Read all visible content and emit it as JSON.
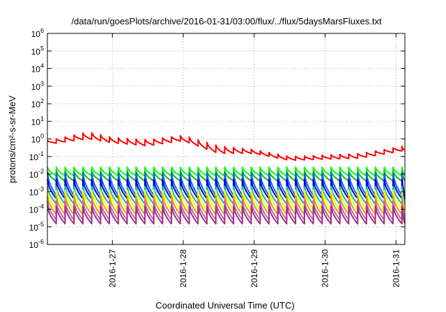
{
  "chart_data": {
    "type": "line",
    "title": "/data/run/goesPlots/archive/2016-01-31/03:00/flux/../flux/5daysMarsFluxes.txt",
    "xlabel": "Coordinated Universal Time (UTC)",
    "ylabel": "protons/cm²-s-sr-MeV",
    "y_scale": "log",
    "ylim": [
      1e-06,
      1000000.0
    ],
    "y_ticks": [
      {
        "base": "10",
        "exp": "-6",
        "value": 1e-06
      },
      {
        "base": "10",
        "exp": "-5",
        "value": 1e-05
      },
      {
        "base": "10",
        "exp": "-4",
        "value": 0.0001
      },
      {
        "base": "10",
        "exp": "-3",
        "value": 0.001
      },
      {
        "base": "10",
        "exp": "-2",
        "value": 0.01
      },
      {
        "base": "10",
        "exp": "-1",
        "value": 0.1
      },
      {
        "base": "10",
        "exp": "0",
        "value": 1
      },
      {
        "base": "10",
        "exp": "1",
        "value": 10
      },
      {
        "base": "10",
        "exp": "2",
        "value": 100
      },
      {
        "base": "10",
        "exp": "3",
        "value": 1000
      },
      {
        "base": "10",
        "exp": "4",
        "value": 10000
      },
      {
        "base": "10",
        "exp": "5",
        "value": 100000
      },
      {
        "base": "10",
        "exp": "6",
        "value": 1000000
      }
    ],
    "xlim": [
      "2016-01-26 02:00",
      "2016-01-31 03:00"
    ],
    "x_ticks": [
      {
        "label": "2016-1-27",
        "value": "2016-01-27 00:00"
      },
      {
        "label": "2016-1-28",
        "value": "2016-01-28 00:00"
      },
      {
        "label": "2016-1-29",
        "value": "2016-01-29 00:00"
      },
      {
        "label": "2016-1-30",
        "value": "2016-01-30 00:00"
      },
      {
        "label": "2016-1-31",
        "value": "2016-01-31 00:00"
      }
    ],
    "grid": true,
    "legend": "none",
    "series_style": "sawtooth; each cycle about 3 hours, value jumps up at the start of a cycle and decays",
    "series": [
      {
        "color": "#ff0000",
        "x": [
          "2016-01-26 02:00",
          "2016-01-26 16:00",
          "2016-01-27 00:00",
          "2016-01-27 12:00",
          "2016-01-28 00:00",
          "2016-01-28 12:00",
          "2016-01-29 00:00",
          "2016-01-29 12:00",
          "2016-01-30 00:00",
          "2016-01-30 12:00",
          "2016-01-31 03:00"
        ],
        "peaks": [
          0.8,
          2.5,
          1.2,
          0.9,
          1.6,
          0.4,
          0.25,
          0.1,
          0.12,
          0.15,
          0.4
        ],
        "troughs": [
          0.5,
          1.0,
          0.6,
          0.4,
          0.8,
          0.15,
          0.15,
          0.06,
          0.07,
          0.08,
          0.22
        ]
      },
      {
        "color": "#00ff00",
        "x_start": "2016-01-26 02:00",
        "x_end": "2016-01-31 03:00",
        "peak": 0.025,
        "trough": 0.008
      },
      {
        "color": "#00c000",
        "x_start": "2016-01-26 02:00",
        "x_end": "2016-01-31 03:00",
        "peak": 0.015,
        "trough": 0.004
      },
      {
        "color": "#1060ff",
        "x_start": "2016-01-26 02:00",
        "x_end": "2016-01-31 03:00",
        "peak": 0.012,
        "trough": 0.0006
      },
      {
        "color": "#0000cc",
        "x_start": "2016-01-26 02:00",
        "x_end": "2016-01-31 03:00",
        "peak": 0.005,
        "trough": 0.0004
      },
      {
        "color": "#00b8b8",
        "x_start": "2016-01-26 02:00",
        "x_end": "2016-01-31 03:00",
        "peak": 0.002,
        "trough": 0.0002
      },
      {
        "color": "#ffff00",
        "x_start": "2016-01-26 02:00",
        "x_end": "2016-01-31 03:00",
        "peak": 0.0012,
        "trough": 0.0001
      },
      {
        "color": "#e0a000",
        "x_start": "2016-01-26 02:00",
        "x_end": "2016-01-31 03:00",
        "peak": 0.0006,
        "trough": 5e-05
      },
      {
        "color": "#c060c0",
        "x_start": "2016-01-26 02:00",
        "x_end": "2016-01-31 03:00",
        "peak": 0.0003,
        "trough": 2.5e-05
      },
      {
        "color": "#a03080",
        "x_start": "2016-01-26 02:00",
        "x_end": "2016-01-31 03:00",
        "peak": 0.00015,
        "trough": 1.5e-05
      }
    ]
  }
}
